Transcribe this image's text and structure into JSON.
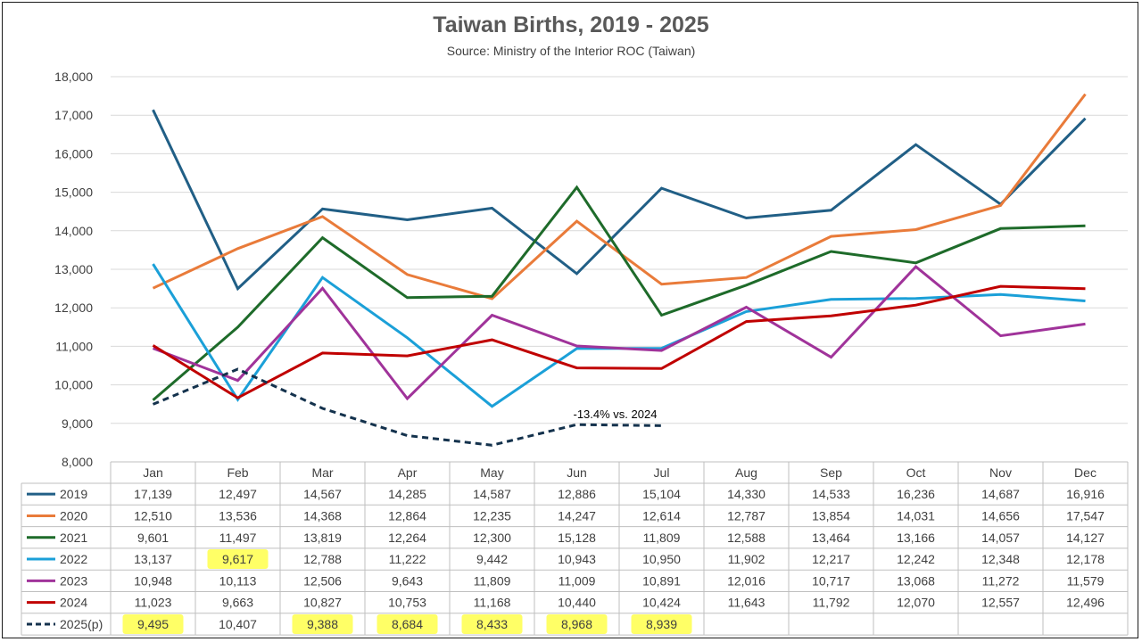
{
  "chart_data": {
    "type": "line",
    "title": "Taiwan Births, 2019 - 2025",
    "subtitle": "Source: Ministry of the Interior ROC (Taiwan)",
    "xlabel": "",
    "ylabel": "",
    "ylim": [
      8000,
      18000
    ],
    "yticks": [
      "8,000",
      "9,000",
      "10,000",
      "11,000",
      "12,000",
      "13,000",
      "14,000",
      "15,000",
      "16,000",
      "17,000",
      "18,000"
    ],
    "grid": true,
    "legend": "data-table-left",
    "categories": [
      "Jan",
      "Feb",
      "Mar",
      "Apr",
      "May",
      "Jun",
      "Jul",
      "Aug",
      "Sep",
      "Oct",
      "Nov",
      "Dec"
    ],
    "series": [
      {
        "name": "2019",
        "color": "#215f86",
        "dashed": false,
        "values": [
          17139,
          12497,
          14567,
          14285,
          14587,
          12886,
          15104,
          14330,
          14533,
          16236,
          14687,
          16916
        ],
        "labels": [
          "17,139",
          "12,497",
          "14,567",
          "14,285",
          "14,587",
          "12,886",
          "15,104",
          "14,330",
          "14,533",
          "16,236",
          "14,687",
          "16,916"
        ]
      },
      {
        "name": "2020",
        "color": "#e97b3a",
        "dashed": false,
        "values": [
          12510,
          13536,
          14368,
          12864,
          12235,
          14247,
          12614,
          12787,
          13854,
          14031,
          14656,
          17547
        ],
        "labels": [
          "12,510",
          "13,536",
          "14,368",
          "12,864",
          "12,235",
          "14,247",
          "12,614",
          "12,787",
          "13,854",
          "14,031",
          "14,656",
          "17,547"
        ]
      },
      {
        "name": "2021",
        "color": "#1e6b2a",
        "dashed": false,
        "values": [
          9601,
          11497,
          13819,
          12264,
          12300,
          15128,
          11809,
          12588,
          13464,
          13166,
          14057,
          14127
        ],
        "labels": [
          "9,601",
          "11,497",
          "13,819",
          "12,264",
          "12,300",
          "15,128",
          "11,809",
          "12,588",
          "13,464",
          "13,166",
          "14,057",
          "14,127"
        ]
      },
      {
        "name": "2022",
        "color": "#1ba0d8",
        "dashed": false,
        "values": [
          13137,
          9617,
          12788,
          11222,
          9442,
          10943,
          10950,
          11902,
          12217,
          12242,
          12348,
          12178
        ],
        "labels": [
          "13,137",
          "9,617",
          "12,788",
          "11,222",
          "9,442",
          "10,943",
          "10,950",
          "11,902",
          "12,217",
          "12,242",
          "12,348",
          "12,178"
        ]
      },
      {
        "name": "2023",
        "color": "#a0339a",
        "dashed": false,
        "values": [
          10948,
          10113,
          12506,
          9643,
          11809,
          11009,
          10891,
          12016,
          10717,
          13068,
          11272,
          11579
        ],
        "labels": [
          "10,948",
          "10,113",
          "12,506",
          "9,643",
          "11,809",
          "11,009",
          "10,891",
          "12,016",
          "10,717",
          "13,068",
          "11,272",
          "11,579"
        ]
      },
      {
        "name": "2024",
        "color": "#c00000",
        "dashed": false,
        "values": [
          11023,
          9663,
          10827,
          10753,
          11168,
          10440,
          10424,
          11643,
          11792,
          12070,
          12557,
          12496
        ],
        "labels": [
          "11,023",
          "9,663",
          "10,827",
          "10,753",
          "11,168",
          "10,440",
          "10,424",
          "11,643",
          "11,792",
          "12,070",
          "12,557",
          "12,496"
        ]
      },
      {
        "name": "2025(p)",
        "color": "#14324d",
        "dashed": true,
        "values": [
          9495,
          10407,
          9388,
          8684,
          8433,
          8968,
          8939,
          null,
          null,
          null,
          null,
          null
        ],
        "labels": [
          "9,495",
          "10,407",
          "9,388",
          "8,684",
          "8,433",
          "8,968",
          "8,939",
          "",
          "",
          "",
          "",
          ""
        ],
        "highlight": [
          true,
          false,
          true,
          true,
          true,
          true,
          true,
          false,
          false,
          false,
          false,
          false
        ]
      }
    ],
    "highlight_row": 3,
    "highlight_cols": [
      1
    ],
    "annotations": [
      {
        "text": "-13.4% vs. 2024",
        "series": "2025(p)",
        "category": "Jun"
      }
    ]
  },
  "highlight_color": "#ffff66"
}
